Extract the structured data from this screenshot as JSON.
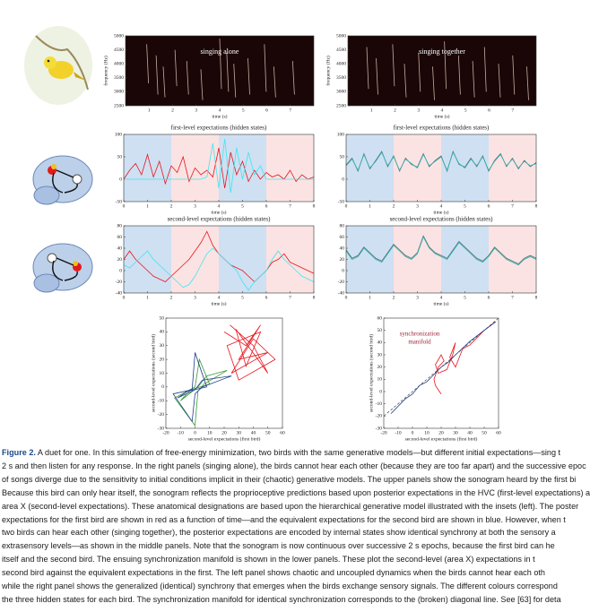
{
  "chart_data": [
    {
      "type": "sonogram",
      "title": "singing alone",
      "xlabel": "time (s)",
      "ylabel": "frequency (Hz)",
      "xlim": [
        0,
        8
      ],
      "xticks": [
        1,
        2,
        3,
        4,
        5,
        6,
        7
      ],
      "ylim": [
        2500,
        5000
      ],
      "yticks": [
        2500,
        3000,
        3500,
        4000,
        4500,
        5000
      ],
      "x": [
        0.9,
        1.3,
        1.6,
        2.1,
        2.6,
        3.2,
        4.0,
        4.3,
        4.6,
        5.2,
        5.9,
        6.3,
        7.1
      ],
      "y": [
        4700,
        4300,
        3900,
        4500,
        4100,
        3800,
        4900,
        4400,
        4000,
        4200,
        4700,
        3900,
        4100
      ],
      "y_low": [
        3300,
        2900,
        2800,
        3200,
        2900,
        2700,
        3100,
        3000,
        2800,
        2900,
        3000,
        2800,
        2900
      ],
      "color": "#f2d6c8"
    },
    {
      "type": "sonogram",
      "title": "singing together",
      "xlabel": "time (s)",
      "ylabel": "frequency (Hz)",
      "xlim": [
        0,
        8
      ],
      "xticks": [
        1,
        2,
        3,
        4,
        5,
        6,
        7
      ],
      "ylim": [
        2500,
        5000
      ],
      "yticks": [
        2500,
        3000,
        3500,
        4000,
        4500,
        5000
      ],
      "x": [
        0.8,
        1.2,
        1.9,
        2.4,
        3.0,
        3.6,
        4.1,
        4.7,
        5.3,
        5.8,
        6.4,
        7.0,
        7.6
      ],
      "y": [
        4600,
        4200,
        4700,
        4000,
        4400,
        3900,
        4800,
        4300,
        4100,
        4600,
        4000,
        4300,
        3900
      ],
      "y_low": [
        3100,
        2900,
        3200,
        2800,
        3000,
        2700,
        3100,
        2900,
        2800,
        3000,
        2800,
        2900,
        2700
      ],
      "color": "#f2d6c8"
    },
    {
      "type": "line",
      "title": "first-level expectations (hidden states)",
      "xlabel": "time (s)",
      "xlim": [
        0,
        8
      ],
      "xticks": [
        0,
        1,
        2,
        3,
        4,
        5,
        6,
        7,
        8
      ],
      "ylim": [
        -50,
        100
      ],
      "yticks": [
        -50,
        0,
        50,
        100
      ],
      "bands": [
        {
          "start": 0,
          "end": 2,
          "color": "#cfe0f2"
        },
        {
          "start": 2,
          "end": 4,
          "color": "#fbe3e3"
        },
        {
          "start": 4,
          "end": 6,
          "color": "#cfe0f2"
        },
        {
          "start": 6,
          "end": 8,
          "color": "#fbe3e3"
        }
      ],
      "x": [
        0,
        0.25,
        0.5,
        0.75,
        1,
        1.25,
        1.5,
        1.75,
        2,
        2.25,
        2.5,
        2.75,
        3,
        3.25,
        3.5,
        3.75,
        4,
        4.25,
        4.5,
        4.75,
        5,
        5.25,
        5.5,
        5.75,
        6,
        6.25,
        6.5,
        6.75,
        7,
        7.25,
        7.5,
        7.75,
        8
      ],
      "series": [
        {
          "color": "#e8141c",
          "values": [
            0,
            20,
            35,
            10,
            55,
            5,
            40,
            -10,
            30,
            15,
            50,
            -5,
            25,
            10,
            20,
            5,
            70,
            -20,
            60,
            10,
            40,
            -5,
            20,
            0,
            15,
            5,
            10,
            0,
            20,
            -5,
            10,
            0,
            5
          ]
        },
        {
          "color": "#3ee6f0",
          "values": [
            0,
            0,
            0,
            0,
            0,
            0,
            0,
            0,
            0,
            0,
            0,
            0,
            0,
            0,
            5,
            80,
            -20,
            90,
            -30,
            70,
            0,
            60,
            10,
            30,
            0,
            0,
            0,
            0,
            0,
            0,
            0,
            0,
            0
          ]
        }
      ]
    },
    {
      "type": "line",
      "title": "first-level expectations (hidden states)",
      "xlabel": "time (s)",
      "xlim": [
        0,
        8
      ],
      "xticks": [
        0,
        1,
        2,
        3,
        4,
        5,
        6,
        7,
        8
      ],
      "ylim": [
        -50,
        100
      ],
      "yticks": [
        -50,
        0,
        50,
        100
      ],
      "bands": [
        {
          "start": 0,
          "end": 2,
          "color": "#cfe0f2"
        },
        {
          "start": 2,
          "end": 4,
          "color": "#fbe3e3"
        },
        {
          "start": 4,
          "end": 6,
          "color": "#cfe0f2"
        },
        {
          "start": 6,
          "end": 8,
          "color": "#fbe3e3"
        }
      ],
      "x": [
        0,
        0.25,
        0.5,
        0.75,
        1,
        1.25,
        1.5,
        1.75,
        2,
        2.25,
        2.5,
        2.75,
        3,
        3.25,
        3.5,
        3.75,
        4,
        4.25,
        4.5,
        4.75,
        5,
        5.25,
        5.5,
        5.75,
        6,
        6.25,
        6.5,
        6.75,
        7,
        7.25,
        7.5,
        7.75,
        8
      ],
      "series": [
        {
          "color": "#5a6a72",
          "values": [
            32,
            47,
            18,
            57,
            23,
            42,
            62,
            28,
            52,
            18,
            47,
            33,
            27,
            57,
            28,
            42,
            52,
            18,
            62,
            33,
            27,
            47,
            28,
            52,
            18,
            42,
            57,
            28,
            47,
            23,
            42,
            28,
            37
          ]
        },
        {
          "color": "#2bb3b0",
          "values": [
            30,
            45,
            20,
            55,
            25,
            40,
            60,
            30,
            50,
            20,
            45,
            35,
            25,
            55,
            30,
            40,
            50,
            20,
            60,
            35,
            25,
            45,
            30,
            50,
            20,
            40,
            55,
            30,
            45,
            25,
            40,
            30,
            35
          ]
        }
      ]
    },
    {
      "type": "line",
      "title": "second-level expectations (hidden states)",
      "xlabel": "time (s)",
      "xlim": [
        0,
        8
      ],
      "xticks": [
        0,
        1,
        2,
        3,
        4,
        5,
        6,
        7,
        8
      ],
      "ylim": [
        -40,
        80
      ],
      "yticks": [
        -40,
        -20,
        0,
        20,
        40,
        60,
        80
      ],
      "bands": [
        {
          "start": 0,
          "end": 2,
          "color": "#cfe0f2"
        },
        {
          "start": 2,
          "end": 4,
          "color": "#fbe3e3"
        },
        {
          "start": 4,
          "end": 6,
          "color": "#cfe0f2"
        },
        {
          "start": 6,
          "end": 8,
          "color": "#fbe3e3"
        }
      ],
      "x": [
        0,
        0.25,
        0.5,
        0.75,
        1,
        1.25,
        1.5,
        1.75,
        2,
        2.25,
        2.5,
        2.75,
        3,
        3.25,
        3.5,
        3.75,
        4,
        4.25,
        4.5,
        4.75,
        5,
        5.25,
        5.5,
        5.75,
        6,
        6.25,
        6.5,
        6.75,
        7,
        7.25,
        7.5,
        7.75,
        8
      ],
      "series": [
        {
          "color": "#e8141c",
          "values": [
            20,
            35,
            20,
            10,
            0,
            -10,
            -15,
            -20,
            -10,
            0,
            10,
            20,
            35,
            50,
            70,
            45,
            30,
            20,
            10,
            5,
            0,
            -10,
            -20,
            -10,
            0,
            15,
            20,
            30,
            15,
            10,
            5,
            0,
            -5
          ]
        },
        {
          "color": "#3ee6f0",
          "values": [
            10,
            5,
            15,
            25,
            35,
            20,
            10,
            0,
            -10,
            -20,
            -30,
            -25,
            -10,
            10,
            30,
            40,
            30,
            20,
            10,
            0,
            -20,
            -35,
            -20,
            -10,
            0,
            20,
            35,
            20,
            10,
            0,
            -10,
            -15,
            -20
          ]
        }
      ]
    },
    {
      "type": "line",
      "title": "second-level expectations (hidden states)",
      "xlabel": "time (s)",
      "xlim": [
        0,
        8
      ],
      "xticks": [
        0,
        1,
        2,
        3,
        4,
        5,
        6,
        7,
        8
      ],
      "ylim": [
        -40,
        80
      ],
      "yticks": [
        -40,
        -20,
        0,
        20,
        40,
        60,
        80
      ],
      "bands": [
        {
          "start": 0,
          "end": 2,
          "color": "#cfe0f2"
        },
        {
          "start": 2,
          "end": 4,
          "color": "#fbe3e3"
        },
        {
          "start": 4,
          "end": 6,
          "color": "#cfe0f2"
        },
        {
          "start": 6,
          "end": 8,
          "color": "#fbe3e3"
        }
      ],
      "x": [
        0,
        0.25,
        0.5,
        0.75,
        1,
        1.25,
        1.5,
        1.75,
        2,
        2.25,
        2.5,
        2.75,
        3,
        3.25,
        3.5,
        3.75,
        4,
        4.25,
        4.5,
        4.75,
        5,
        5.25,
        5.5,
        5.75,
        6,
        6.25,
        6.5,
        6.75,
        7,
        7.25,
        7.5,
        7.75,
        8
      ],
      "series": [
        {
          "color": "#5a6a72",
          "values": [
            37,
            22,
            27,
            42,
            32,
            22,
            17,
            32,
            47,
            37,
            27,
            22,
            32,
            62,
            42,
            32,
            27,
            22,
            37,
            52,
            42,
            32,
            22,
            17,
            27,
            42,
            32,
            22,
            17,
            12,
            22,
            27,
            22
          ]
        },
        {
          "color": "#2bb3b0",
          "values": [
            35,
            20,
            25,
            40,
            30,
            20,
            15,
            30,
            45,
            35,
            25,
            20,
            30,
            60,
            40,
            30,
            25,
            20,
            35,
            50,
            40,
            30,
            20,
            15,
            25,
            40,
            30,
            20,
            15,
            10,
            20,
            25,
            20
          ]
        }
      ]
    },
    {
      "type": "phase",
      "xlabel": "second-level expectations (first bird)",
      "ylabel": "second-level expectations (second bird)",
      "xlim": [
        -20,
        60
      ],
      "xticks": [
        -20,
        -10,
        0,
        10,
        20,
        30,
        40,
        50,
        60
      ],
      "ylim": [
        -30,
        50
      ],
      "yticks": [
        -30,
        -20,
        -10,
        0,
        10,
        20,
        30,
        40,
        50
      ],
      "series": [
        {
          "color": "#e8141c",
          "x": [
            20,
            35,
            45,
            30,
            50,
            25,
            40,
            55,
            30,
            22,
            45,
            35,
            28,
            50,
            40,
            24
          ],
          "y": [
            40,
            30,
            45,
            20,
            25,
            10,
            35,
            20,
            5,
            30,
            40,
            15,
            42,
            10,
            30,
            45
          ]
        },
        {
          "color": "#3a9a3a",
          "x": [
            -10,
            2,
            8,
            22,
            6,
            2,
            0,
            -14,
            0,
            3,
            10,
            -3,
            -10
          ],
          "y": [
            -10,
            0,
            8,
            12,
            2,
            -3,
            -28,
            -8,
            0,
            20,
            2,
            -2,
            -10
          ]
        },
        {
          "color": "#1f3d8a",
          "x": [
            -12,
            0,
            5,
            25,
            5,
            0,
            -2,
            -15,
            -2,
            0,
            8,
            -5,
            -12
          ],
          "y": [
            -8,
            -2,
            5,
            8,
            0,
            -5,
            -25,
            -5,
            -2,
            25,
            0,
            -3,
            -8
          ]
        }
      ]
    },
    {
      "type": "phase",
      "xlabel": "second-level expectations (first bird)",
      "ylabel": "second-level expectations (second bird)",
      "xlim": [
        -20,
        60
      ],
      "xticks": [
        -20,
        -10,
        0,
        10,
        20,
        30,
        40,
        50,
        60
      ],
      "ylim": [
        -30,
        60
      ],
      "yticks": [
        -30,
        -20,
        -10,
        0,
        10,
        20,
        30,
        40,
        50,
        60
      ],
      "annotation": [
        "synchronization",
        "manifold"
      ],
      "annotation_color": "#a0203a",
      "manifold": {
        "x": [
          -20,
          60
        ],
        "y": [
          -20,
          60
        ]
      },
      "series": [
        {
          "color": "#e8141c",
          "x": [
            20,
            16,
            15,
            18,
            22,
            20,
            16,
            18,
            24,
            28,
            30,
            26,
            30,
            35,
            40,
            50,
            58
          ],
          "y": [
            -2,
            5,
            10,
            20,
            25,
            30,
            22,
            15,
            18,
            30,
            40,
            28,
            20,
            35,
            38,
            50,
            57
          ]
        },
        {
          "color": "#1f3d8a",
          "x": [
            -15,
            -5,
            0,
            5,
            10,
            15,
            20,
            25,
            30,
            40,
            50,
            58
          ],
          "y": [
            -18,
            -6,
            -2,
            5,
            8,
            14,
            20,
            24,
            30,
            41,
            50,
            57
          ]
        }
      ]
    }
  ],
  "caption": {
    "label": "Figure 2.",
    "lines": [
      " A duet for one. In this simulation of free-energy minimization, two birds with the same generative models—but different initial expectations—sing t",
      "2 s and then listen for any response. In the right panels (singing alone), the birds cannot hear each other (because they are too far apart) and the successive epoc",
      "of songs diverge due to the sensitivity to initial conditions implicit in their (chaotic) generative models. The upper panels show the sonogram heard by the first bi",
      "Because this bird can only hear itself, the sonogram reflects the proprioceptive predictions based upon posterior expectations in the HVC (first-level expectations) a",
      "area X (second-level expectations). These anatomical designations are based upon the hierarchical generative model illustrated with the insets (left). The poster",
      "expectations for the first bird are shown in red as a function of time—and the equivalent expectations for the second bird are shown in blue. However, when t",
      "two birds can hear each other (singing together), the posterior expectations are encoded by internal states show identical synchrony at both the sensory a",
      "extrasensory levels—as shown in the middle panels. Note that the sonogram is now continuous over successive 2 s epochs, because the first bird can he",
      "itself and the second bird. The ensuing synchronization manifold is shown in the lower panels. These plot the second-level (area X) expectations in t",
      "second bird against the equivalent expectations in the first. The left panel shows chaotic and uncoupled dynamics when the birds cannot hear each oth",
      "while the right panel shows the generalized (identical) synchrony that emerges when the birds exchange sensory signals. The different colours correspond",
      "the three hidden states for each bird. The synchronization manifold for identical synchronization corresponds to the (broken) diagonal line. See [63] for deta"
    ]
  }
}
